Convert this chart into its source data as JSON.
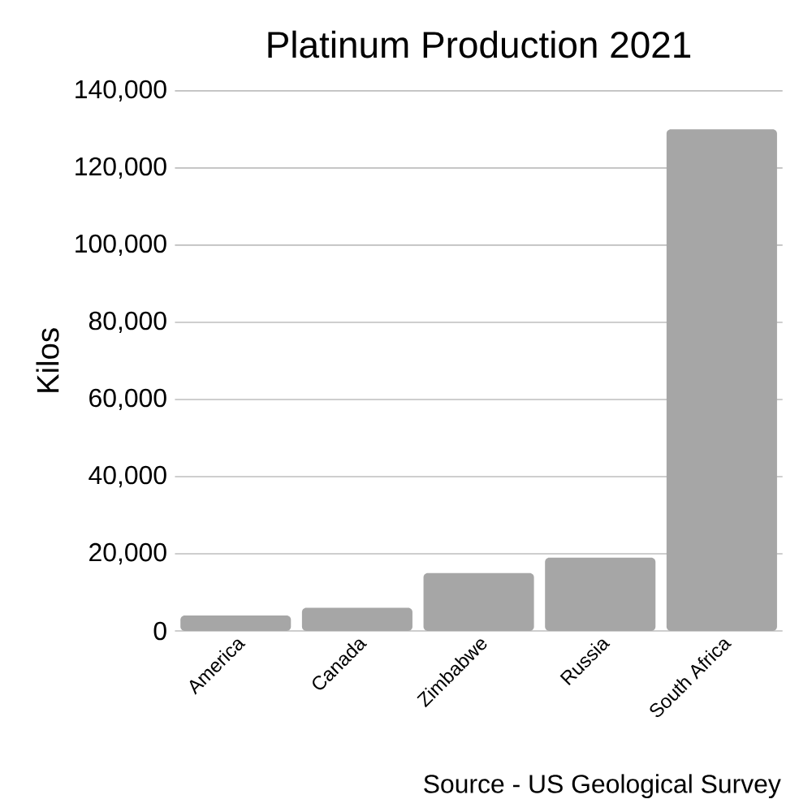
{
  "chart_data": {
    "type": "bar",
    "title": "Platinum Production 2021",
    "ylabel": "Kilos",
    "categories": [
      "America",
      "Canada",
      "Zimbabwe",
      "Russia",
      "South Africa"
    ],
    "values": [
      4000,
      6000,
      15000,
      19000,
      130000
    ],
    "color": "#a6a6a6",
    "ylim": [
      0,
      140000
    ],
    "yticks": [
      {
        "value": 0,
        "label": "0"
      },
      {
        "value": 20000,
        "label": "20,000"
      },
      {
        "value": 40000,
        "label": "40,000"
      },
      {
        "value": 60000,
        "label": "60,000"
      },
      {
        "value": 80000,
        "label": "80,000"
      },
      {
        "value": 100000,
        "label": "100,000"
      },
      {
        "value": 120000,
        "label": "120,000"
      },
      {
        "value": 140000,
        "label": "140,000"
      }
    ],
    "grid": "y",
    "annotations": [
      "Source - US Geological Survey"
    ]
  }
}
